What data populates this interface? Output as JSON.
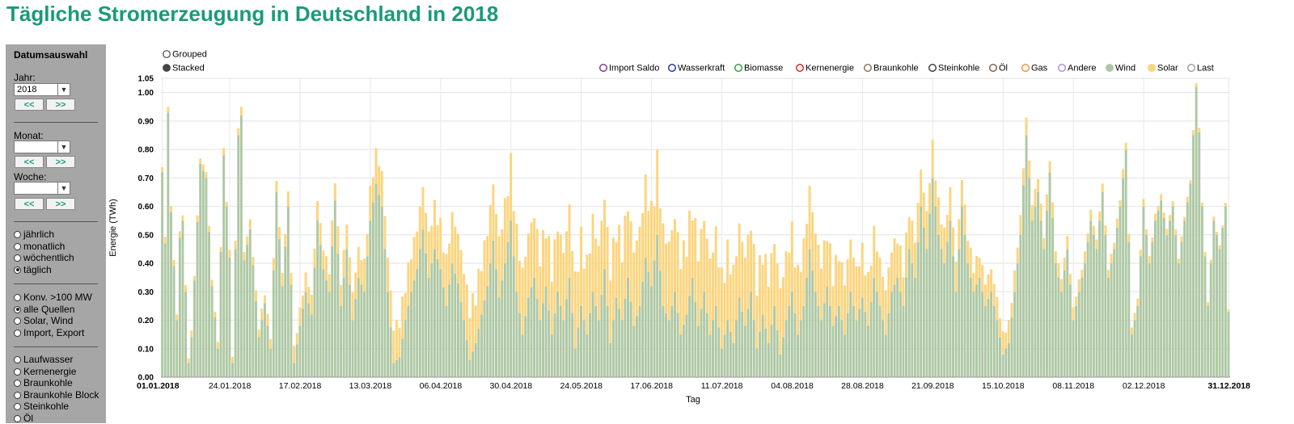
{
  "title": "Tägliche Stromerzeugung in Deutschland in 2018",
  "sidebar": {
    "heading": "Datumsauswahl",
    "year_label": "Jahr:",
    "year_value": "2018",
    "prev": "<<",
    "next": ">>",
    "month_label": "Monat:",
    "month_value": "",
    "week_label": "Woche:",
    "week_value": "",
    "period_options": [
      "jährlich",
      "monatlich",
      "wöchentlich",
      "täglich"
    ],
    "period_selected": 3,
    "source_options": [
      "Konv. >100 MW",
      "alle Quellen",
      "Solar, Wind",
      "Import, Export"
    ],
    "source_selected": 1,
    "type_options": [
      "Laufwasser",
      "Kernenergie",
      "Braunkohle",
      "Braunkohle Block",
      "Steinkohle",
      "Öl"
    ]
  },
  "mode_options": [
    {
      "label": "Grouped",
      "selected": false
    },
    {
      "label": "Stacked",
      "selected": true
    }
  ],
  "colors": {
    "wind": "#aec8a4",
    "solar": "#fdd47c",
    "title": "#1a9a7a"
  },
  "legend": [
    {
      "label": "Import Saldo",
      "color": "#7b2f8e",
      "filled": false
    },
    {
      "label": "Wasserkraft",
      "color": "#1a2ca8",
      "filled": false
    },
    {
      "label": "Biomasse",
      "color": "#2a9a3a",
      "filled": false
    },
    {
      "label": "Kernenergie",
      "color": "#d62020",
      "filled": false
    },
    {
      "label": "Braunkohle",
      "color": "#8b6a4a",
      "filled": false
    },
    {
      "label": "Steinkohle",
      "color": "#333333",
      "filled": false
    },
    {
      "label": "Öl",
      "color": "#7a5a3a",
      "filled": false
    },
    {
      "label": "Gas",
      "color": "#f08a3a",
      "filled": false
    },
    {
      "label": "Andere",
      "color": "#a88ac8",
      "filled": false
    },
    {
      "label": "Wind",
      "color": "#aec8a4",
      "filled": true
    },
    {
      "label": "Solar",
      "color": "#fdd47c",
      "filled": true
    },
    {
      "label": "Last",
      "color": "#9a9a9a",
      "filled": false
    }
  ],
  "chart_data": {
    "type": "bar",
    "stacked": true,
    "xlabel": "Tag",
    "ylabel": "Energie (TWh)",
    "ylim": [
      0,
      1.05
    ],
    "yticks": [
      "0.00",
      "0.10",
      "0.20",
      "0.30",
      "0.40",
      "0.50",
      "0.60",
      "0.70",
      "0.80",
      "0.90",
      "1.00",
      "1.05"
    ],
    "yticks_values": [
      0,
      0.1,
      0.2,
      0.3,
      0.4,
      0.5,
      0.6,
      0.7,
      0.8,
      0.9,
      1.0,
      1.05
    ],
    "x_tick_labels": [
      "01.01.2018",
      "24.01.2018",
      "17.02.2018",
      "13.03.2018",
      "06.04.2018",
      "30.04.2018",
      "24.05.2018",
      "17.06.2018",
      "11.07.2018",
      "04.08.2018",
      "28.08.2018",
      "21.09.2018",
      "15.10.2018",
      "08.11.2018",
      "02.12.2018",
      "31.12.2018"
    ],
    "x_tick_days": [
      0,
      23,
      47,
      71,
      95,
      119,
      143,
      167,
      191,
      215,
      239,
      263,
      287,
      311,
      335,
      364
    ],
    "grid": true,
    "legend_position": "top",
    "series_names": [
      "Wind",
      "Solar"
    ],
    "wind_anchors": [
      [
        0,
        0.72
      ],
      [
        1,
        0.47
      ],
      [
        2,
        0.93
      ],
      [
        3,
        0.58
      ],
      [
        5,
        0.2
      ],
      [
        6,
        0.49
      ],
      [
        7,
        0.55
      ],
      [
        9,
        0.05
      ],
      [
        10,
        0.14
      ],
      [
        11,
        0.34
      ],
      [
        13,
        0.75
      ],
      [
        15,
        0.7
      ],
      [
        17,
        0.32
      ],
      [
        19,
        0.1
      ],
      [
        21,
        0.78
      ],
      [
        23,
        0.42
      ],
      [
        24,
        0.05
      ],
      [
        26,
        0.85
      ],
      [
        27,
        0.92
      ],
      [
        28,
        0.41
      ],
      [
        30,
        0.52
      ],
      [
        33,
        0.14
      ],
      [
        35,
        0.26
      ],
      [
        37,
        0.1
      ],
      [
        39,
        0.65
      ],
      [
        41,
        0.32
      ],
      [
        43,
        0.6
      ],
      [
        45,
        0.05
      ],
      [
        47,
        0.18
      ],
      [
        49,
        0.3
      ],
      [
        51,
        0.22
      ],
      [
        53,
        0.55
      ],
      [
        55,
        0.38
      ],
      [
        57,
        0.3
      ],
      [
        59,
        0.62
      ],
      [
        61,
        0.25
      ],
      [
        63,
        0.45
      ],
      [
        65,
        0.2
      ],
      [
        67,
        0.35
      ],
      [
        69,
        0.3
      ],
      [
        71,
        0.55
      ],
      [
        73,
        0.68
      ],
      [
        75,
        0.6
      ],
      [
        77,
        0.3
      ],
      [
        79,
        0.05
      ],
      [
        81,
        0.07
      ],
      [
        83,
        0.2
      ],
      [
        85,
        0.3
      ],
      [
        87,
        0.38
      ],
      [
        89,
        0.52
      ],
      [
        91,
        0.35
      ],
      [
        93,
        0.45
      ],
      [
        95,
        0.38
      ],
      [
        97,
        0.25
      ],
      [
        99,
        0.4
      ],
      [
        101,
        0.33
      ],
      [
        103,
        0.2
      ],
      [
        105,
        0.06
      ],
      [
        107,
        0.12
      ],
      [
        109,
        0.22
      ],
      [
        111,
        0.32
      ],
      [
        113,
        0.48
      ],
      [
        115,
        0.28
      ],
      [
        117,
        0.4
      ],
      [
        119,
        0.55
      ],
      [
        121,
        0.3
      ],
      [
        123,
        0.15
      ],
      [
        125,
        0.28
      ],
      [
        127,
        0.35
      ],
      [
        129,
        0.2
      ],
      [
        131,
        0.32
      ],
      [
        133,
        0.15
      ],
      [
        135,
        0.3
      ],
      [
        137,
        0.2
      ],
      [
        139,
        0.35
      ],
      [
        141,
        0.1
      ],
      [
        143,
        0.25
      ],
      [
        145,
        0.15
      ],
      [
        147,
        0.3
      ],
      [
        149,
        0.2
      ],
      [
        151,
        0.38
      ],
      [
        153,
        0.12
      ],
      [
        155,
        0.28
      ],
      [
        157,
        0.2
      ],
      [
        159,
        0.35
      ],
      [
        161,
        0.18
      ],
      [
        163,
        0.25
      ],
      [
        165,
        0.42
      ],
      [
        167,
        0.32
      ],
      [
        169,
        0.5
      ],
      [
        171,
        0.25
      ],
      [
        173,
        0.2
      ],
      [
        175,
        0.3
      ],
      [
        177,
        0.15
      ],
      [
        179,
        0.22
      ],
      [
        181,
        0.35
      ],
      [
        183,
        0.18
      ],
      [
        185,
        0.3
      ],
      [
        187,
        0.15
      ],
      [
        189,
        0.25
      ],
      [
        191,
        0.1
      ],
      [
        193,
        0.2
      ],
      [
        195,
        0.12
      ],
      [
        197,
        0.28
      ],
      [
        199,
        0.18
      ],
      [
        201,
        0.3
      ],
      [
        203,
        0.1
      ],
      [
        205,
        0.22
      ],
      [
        207,
        0.12
      ],
      [
        209,
        0.25
      ],
      [
        211,
        0.08
      ],
      [
        213,
        0.2
      ],
      [
        215,
        0.3
      ],
      [
        217,
        0.15
      ],
      [
        219,
        0.25
      ],
      [
        221,
        0.45
      ],
      [
        223,
        0.3
      ],
      [
        225,
        0.2
      ],
      [
        227,
        0.32
      ],
      [
        229,
        0.18
      ],
      [
        231,
        0.25
      ],
      [
        233,
        0.15
      ],
      [
        235,
        0.3
      ],
      [
        237,
        0.2
      ],
      [
        239,
        0.28
      ],
      [
        241,
        0.18
      ],
      [
        243,
        0.35
      ],
      [
        245,
        0.25
      ],
      [
        247,
        0.15
      ],
      [
        249,
        0.3
      ],
      [
        251,
        0.35
      ],
      [
        253,
        0.25
      ],
      [
        255,
        0.45
      ],
      [
        257,
        0.35
      ],
      [
        259,
        0.6
      ],
      [
        261,
        0.45
      ],
      [
        263,
        0.7
      ],
      [
        265,
        0.5
      ],
      [
        267,
        0.4
      ],
      [
        269,
        0.55
      ],
      [
        271,
        0.3
      ],
      [
        273,
        0.6
      ],
      [
        275,
        0.4
      ],
      [
        277,
        0.3
      ],
      [
        279,
        0.35
      ],
      [
        281,
        0.25
      ],
      [
        283,
        0.3
      ],
      [
        285,
        0.2
      ],
      [
        287,
        0.08
      ],
      [
        289,
        0.12
      ],
      [
        291,
        0.3
      ],
      [
        293,
        0.5
      ],
      [
        295,
        0.85
      ],
      [
        297,
        0.55
      ],
      [
        299,
        0.65
      ],
      [
        301,
        0.45
      ],
      [
        303,
        0.72
      ],
      [
        305,
        0.4
      ],
      [
        307,
        0.3
      ],
      [
        309,
        0.45
      ],
      [
        311,
        0.2
      ],
      [
        313,
        0.3
      ],
      [
        315,
        0.4
      ],
      [
        317,
        0.55
      ],
      [
        319,
        0.45
      ],
      [
        321,
        0.65
      ],
      [
        323,
        0.35
      ],
      [
        325,
        0.45
      ],
      [
        327,
        0.6
      ],
      [
        329,
        0.8
      ],
      [
        331,
        0.15
      ],
      [
        333,
        0.25
      ],
      [
        335,
        0.6
      ],
      [
        337,
        0.4
      ],
      [
        339,
        0.55
      ],
      [
        341,
        0.62
      ],
      [
        343,
        0.5
      ],
      [
        345,
        0.6
      ],
      [
        347,
        0.4
      ],
      [
        349,
        0.55
      ],
      [
        351,
        0.68
      ],
      [
        352,
        0.85
      ],
      [
        353,
        1.02
      ],
      [
        354,
        0.86
      ],
      [
        355,
        0.6
      ],
      [
        357,
        0.25
      ],
      [
        359,
        0.55
      ],
      [
        361,
        0.45
      ],
      [
        363,
        0.6
      ],
      [
        364,
        0.23
      ]
    ],
    "solar_anchors": [
      [
        0,
        0.02
      ],
      [
        20,
        0.02
      ],
      [
        40,
        0.04
      ],
      [
        60,
        0.08
      ],
      [
        80,
        0.12
      ],
      [
        100,
        0.16
      ],
      [
        120,
        0.2
      ],
      [
        140,
        0.23
      ],
      [
        160,
        0.25
      ],
      [
        180,
        0.25
      ],
      [
        200,
        0.23
      ],
      [
        220,
        0.2
      ],
      [
        240,
        0.16
      ],
      [
        260,
        0.12
      ],
      [
        280,
        0.08
      ],
      [
        300,
        0.05
      ],
      [
        320,
        0.03
      ],
      [
        340,
        0.02
      ],
      [
        364,
        0.01
      ]
    ]
  },
  "footer_text": ""
}
